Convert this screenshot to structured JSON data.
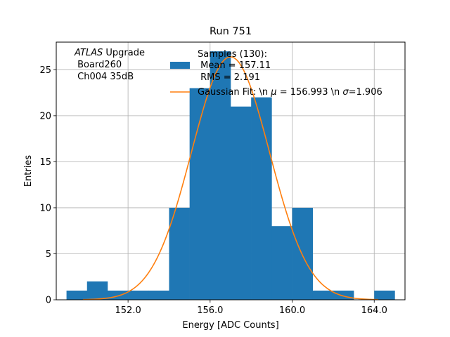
{
  "chart_data": {
    "type": "bar",
    "title": "Run 751",
    "xlabel": "Energy [ADC Counts]",
    "ylabel": "Entries",
    "xlim": [
      148.5,
      165.5
    ],
    "ylim": [
      0,
      28
    ],
    "x_ticks": [
      152,
      156,
      160,
      164
    ],
    "x_tick_labels": [
      "152.0",
      "156.0",
      "160.0",
      "164.0"
    ],
    "y_ticks": [
      0,
      5,
      10,
      15,
      20,
      25
    ],
    "y_tick_labels": [
      "0",
      "5",
      "10",
      "15",
      "20",
      "25"
    ],
    "grid": true,
    "bin_edges": [
      149,
      150,
      151,
      152,
      153,
      154,
      155,
      156,
      157,
      158,
      159,
      160,
      161,
      162,
      163,
      164,
      165
    ],
    "counts": [
      1,
      2,
      1,
      1,
      1,
      10,
      23,
      27,
      21,
      22,
      8,
      10,
      1,
      1,
      0,
      1
    ],
    "histogram_color": "#1f77b4",
    "fit": {
      "type": "gaussian",
      "mu": 156.993,
      "sigma": 1.906,
      "amplitude": 26.4,
      "x_range": [
        149.8,
        164.2
      ],
      "color": "#ff7f0e"
    },
    "annotation_lines": [
      "ATLAS Upgrade",
      " Board260",
      " Ch004 35dB"
    ],
    "annotation_italic_word": "ATLAS",
    "annotation_rest": " Upgrade",
    "legend": {
      "placement": "top-center",
      "hist_lines": [
        "Samples (130):",
        " Mean = 157.11",
        " RMS = 2.191"
      ],
      "fit_label_prefix": "Gaussian Fit: \\n ",
      "fit_mu_symbol": "μ",
      "fit_mu_text": " = 156.993 \\n ",
      "fit_sigma_symbol": "σ",
      "fit_sigma_text": "=1.906"
    }
  }
}
